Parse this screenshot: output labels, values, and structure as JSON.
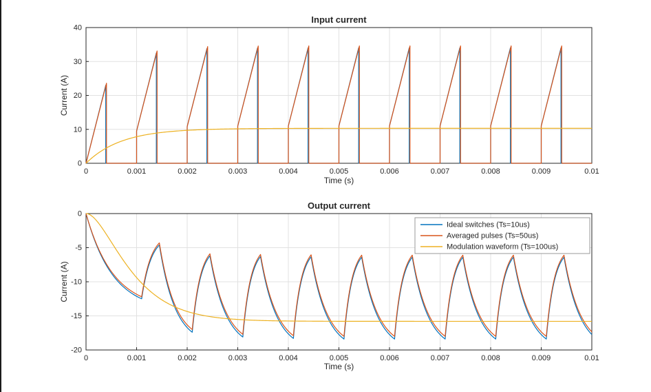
{
  "window": {
    "background": "#ffffff"
  },
  "style": {
    "axis_color": "#262626",
    "grid_color": "#e1e1e1",
    "legend_border": "#999999",
    "legend_background": "#ffffff",
    "series_blue": "#0072BD",
    "series_orange": "#D95319",
    "series_yellow": "#EDB120"
  },
  "chart_data": [
    {
      "type": "line",
      "title": "Input current",
      "xlabel": "Time (s)",
      "ylabel": "Current (A)",
      "xlim": [
        0,
        0.01
      ],
      "ylim": [
        0,
        40
      ],
      "xticks": [
        0,
        0.001,
        0.002,
        0.003,
        0.004,
        0.005,
        0.006,
        0.007,
        0.008,
        0.009,
        0.01
      ],
      "xtick_labels": [
        "0",
        "0.001",
        "0.002",
        "0.003",
        "0.004",
        "0.005",
        "0.006",
        "0.007",
        "0.008",
        "0.009",
        "0.01"
      ],
      "yticks": [
        0,
        10,
        20,
        30,
        40
      ],
      "ytick_labels": [
        "0",
        "10",
        "20",
        "30",
        "40"
      ],
      "grid": true,
      "legend": false,
      "series": [
        {
          "name": "Ideal switches (Ts=10us)",
          "color": "#0072BD",
          "kind": "pulse_train",
          "params": {
            "period": 0.001,
            "duty": 0.39,
            "ripple": 23.0,
            "valley_final": 11.0,
            "valley_tau": 0.0005
          }
        },
        {
          "name": "Averaged pulses (Ts=50us)",
          "color": "#D95319",
          "kind": "pulse_train",
          "params": {
            "period": 0.001,
            "duty": 0.405,
            "ripple": 23.6,
            "valley_final": 11.0,
            "valley_tau": 0.0005
          }
        },
        {
          "name": "Modulation waveform (Ts=100us)",
          "color": "#EDB120",
          "kind": "first_order",
          "params": {
            "start": 0,
            "final": 10.3,
            "tau": 0.0007
          }
        }
      ]
    },
    {
      "type": "line",
      "title": "Output current",
      "xlabel": "Time (s)",
      "ylabel": "Current (A)",
      "xlim": [
        0,
        0.01
      ],
      "ylim": [
        -20,
        0
      ],
      "xticks": [
        0,
        0.001,
        0.002,
        0.003,
        0.004,
        0.005,
        0.006,
        0.007,
        0.008,
        0.009,
        0.01
      ],
      "xtick_labels": [
        "0",
        "0.001",
        "0.002",
        "0.003",
        "0.004",
        "0.005",
        "0.006",
        "0.007",
        "0.008",
        "0.009",
        "0.01"
      ],
      "yticks": [
        -20,
        -15,
        -10,
        -5,
        0
      ],
      "ytick_labels": [
        "-20",
        "-15",
        "-10",
        "-5",
        "0"
      ],
      "grid": true,
      "legend": true,
      "series": [
        {
          "name": "Ideal switches (Ts=10us)",
          "color": "#0072BD",
          "kind": "switched",
          "params": {
            "period": 0.001,
            "first_trough_t": 0.0011,
            "rise_dur": 0.00035,
            "start": 0,
            "peaks": [
              -4.6,
              -6.2,
              -6.3,
              -6.35,
              -6.4,
              -6.4,
              -6.4,
              -6.4,
              -6.4,
              -6.4
            ],
            "troughs": [
              -12.5,
              -17.4,
              -18.1,
              -18.3,
              -18.4,
              -18.4,
              -18.4,
              -18.4,
              -18.4,
              -18.4
            ],
            "decay_asym_off": 1.8,
            "rise_asym_off": 1.5
          }
        },
        {
          "name": "Averaged pulses (Ts=50us)",
          "color": "#D95319",
          "kind": "switched",
          "params": {
            "period": 0.001,
            "first_trough_t": 0.0011,
            "rise_dur": 0.00035,
            "start": 0,
            "peaks": [
              -4.3,
              -5.9,
              -6.0,
              -6.05,
              -6.1,
              -6.1,
              -6.1,
              -6.1,
              -6.1,
              -6.1
            ],
            "troughs": [
              -12.2,
              -17.0,
              -17.7,
              -17.9,
              -18.0,
              -18.0,
              -18.0,
              -18.0,
              -18.0,
              -18.0
            ],
            "decay_asym_off": 1.8,
            "rise_asym_off": 1.5
          }
        },
        {
          "name": "Modulation waveform (Ts=100us)",
          "color": "#EDB120",
          "kind": "second_order",
          "params": {
            "start": 0,
            "final": -15.8,
            "tau": 0.0005
          }
        }
      ]
    }
  ]
}
